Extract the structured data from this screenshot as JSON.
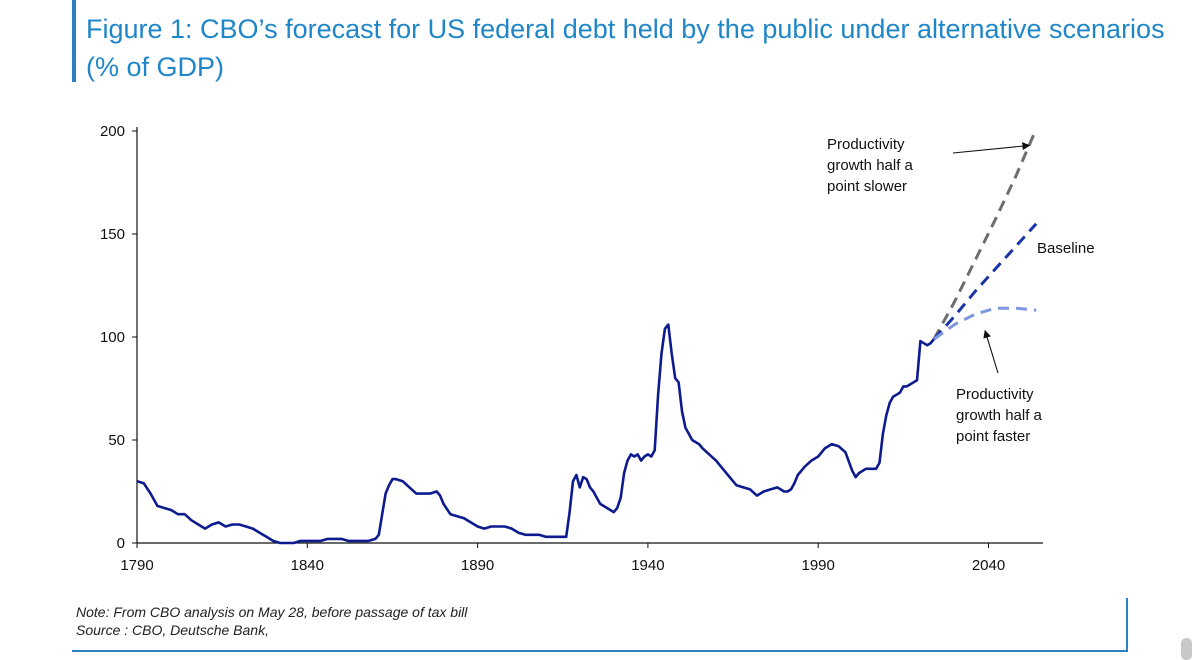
{
  "title": "Figure 1: CBO’s forecast for US federal debt held by the public under alternative scenarios (% of GDP)",
  "note": "Note: From CBO analysis on May 28, before passage of tax bill",
  "source": "Source : CBO, Deutsche Bank,",
  "colors": {
    "accent": "#1f86c8",
    "historical": "#0d1b8e",
    "slower": "#6e6e6e",
    "baseline": "#1a34a8",
    "faster": "#7e97de"
  },
  "chart_data": {
    "type": "line",
    "xlim": [
      1790,
      2056
    ],
    "ylim": [
      0,
      200
    ],
    "x_ticks": [
      "1790",
      "1840",
      "1890",
      "1940",
      "1990",
      "2040"
    ],
    "y_ticks": [
      "0",
      "50",
      "100",
      "150",
      "200"
    ],
    "grid": false,
    "series": [
      {
        "key": "historical",
        "style": "solid",
        "x": [
          1790,
          1792,
          1794,
          1796,
          1798,
          1800,
          1802,
          1804,
          1806,
          1808,
          1810,
          1812,
          1814,
          1816,
          1818,
          1820,
          1822,
          1824,
          1826,
          1828,
          1830,
          1832,
          1834,
          1836,
          1838,
          1840,
          1842,
          1844,
          1846,
          1848,
          1850,
          1852,
          1854,
          1856,
          1858,
          1860,
          1861,
          1862,
          1863,
          1864,
          1865,
          1866,
          1868,
          1870,
          1872,
          1874,
          1876,
          1878,
          1879,
          1880,
          1882,
          1884,
          1886,
          1888,
          1890,
          1892,
          1894,
          1896,
          1898,
          1900,
          1902,
          1904,
          1906,
          1908,
          1910,
          1912,
          1914,
          1916,
          1917,
          1918,
          1919,
          1920,
          1921,
          1922,
          1923,
          1924,
          1925,
          1926,
          1928,
          1930,
          1931,
          1932,
          1933,
          1934,
          1935,
          1936,
          1937,
          1938,
          1939,
          1940,
          1941,
          1942,
          1943,
          1944,
          1945,
          1946,
          1947,
          1948,
          1949,
          1950,
          1951,
          1952,
          1953,
          1954,
          1955,
          1956,
          1958,
          1960,
          1962,
          1964,
          1966,
          1968,
          1970,
          1972,
          1974,
          1976,
          1978,
          1980,
          1981,
          1982,
          1983,
          1984,
          1985,
          1986,
          1988,
          1990,
          1992,
          1994,
          1996,
          1998,
          2000,
          2001,
          2002,
          2004,
          2006,
          2007,
          2008,
          2009,
          2010,
          2011,
          2012,
          2013,
          2014,
          2015,
          2016,
          2017,
          2018,
          2019,
          2020,
          2021,
          2022,
          2023,
          2024
        ],
        "y": [
          30,
          29,
          24,
          18,
          17,
          16,
          14,
          14,
          11,
          9,
          7,
          9,
          10,
          8,
          9,
          9,
          8,
          7,
          5,
          3,
          1,
          0,
          0,
          0,
          1,
          1,
          1,
          1,
          2,
          2,
          2,
          1,
          1,
          1,
          1,
          2,
          4,
          14,
          24,
          28,
          31,
          31,
          30,
          27,
          24,
          24,
          24,
          25,
          23,
          19,
          14,
          13,
          12,
          10,
          8,
          7,
          8,
          8,
          8,
          7,
          5,
          4,
          4,
          4,
          3,
          3,
          3,
          3,
          15,
          30,
          33,
          27,
          32,
          31,
          27,
          25,
          22,
          19,
          17,
          15,
          17,
          22,
          34,
          40,
          43,
          42,
          43,
          40,
          42,
          43,
          42,
          45,
          72,
          92,
          104,
          106,
          92,
          80,
          78,
          64,
          56,
          53,
          50,
          49,
          48,
          46,
          43,
          40,
          36,
          32,
          28,
          27,
          26,
          23,
          25,
          26,
          27,
          25,
          25,
          26,
          29,
          33,
          35,
          37,
          40,
          42,
          46,
          48,
          47,
          44,
          35,
          32,
          34,
          36,
          36,
          36,
          39,
          53,
          62,
          68,
          71,
          72,
          73,
          76,
          76,
          77,
          78,
          79,
          98,
          97,
          96,
          97,
          99
        ]
      },
      {
        "key": "slower",
        "label": "Productivity growth half a point slower",
        "style": "dashed",
        "x": [
          2024,
          2030,
          2036,
          2042,
          2048,
          2054
        ],
        "y": [
          99,
          117,
          137,
          157,
          178,
          201
        ]
      },
      {
        "key": "baseline",
        "label": "Baseline",
        "style": "dashed",
        "x": [
          2024,
          2030,
          2036,
          2042,
          2048,
          2054
        ],
        "y": [
          99,
          110,
          122,
          133,
          144,
          155
        ]
      },
      {
        "key": "faster",
        "label": "Productivity growth half a point faster",
        "style": "dashed",
        "x": [
          2024,
          2030,
          2036,
          2042,
          2048,
          2054
        ],
        "y": [
          99,
          106,
          111,
          114,
          114,
          113
        ]
      }
    ],
    "annotations": [
      {
        "key": "slower",
        "lines": [
          "Productivity",
          "growth half a",
          "point slower"
        ],
        "arrow_to": [
          2052,
          193
        ]
      },
      {
        "key": "baseline",
        "lines": [
          "Baseline"
        ],
        "arrow_to": null
      },
      {
        "key": "faster",
        "lines": [
          "Productivity",
          "growth half a",
          "point faster"
        ],
        "arrow_to": [
          2039,
          103
        ]
      }
    ]
  }
}
